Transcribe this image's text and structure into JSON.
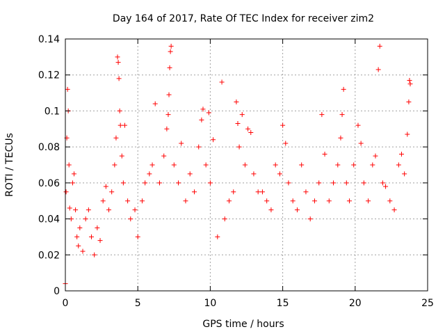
{
  "chart_data": {
    "type": "scatter",
    "title": "Day 164 of 2017, Rate Of TEC Index for receiver zim2",
    "xlabel": "GPS time / hours",
    "ylabel": "ROTI / TECUs",
    "xlim": [
      0,
      25
    ],
    "ylim": [
      0,
      0.14
    ],
    "xticks": [
      0,
      5,
      10,
      15,
      20,
      25
    ],
    "xtick_labels": [
      "0",
      "5",
      "10",
      "15",
      "20",
      "25"
    ],
    "yticks": [
      0,
      0.02,
      0.04,
      0.06,
      0.08,
      0.1,
      0.12,
      0.14
    ],
    "ytick_labels": [
      "0",
      "0.02",
      "0.04",
      "0.06",
      "0.08",
      "0.1",
      "0.12",
      "0.14"
    ],
    "grid": true,
    "marker": "plus",
    "color": "#ff0000",
    "series": [
      {
        "name": "ROTI",
        "points": [
          [
            0.0,
            0.004
          ],
          [
            0.05,
            0.055
          ],
          [
            0.1,
            0.085
          ],
          [
            0.15,
            0.112
          ],
          [
            0.2,
            0.1
          ],
          [
            0.25,
            0.07
          ],
          [
            0.3,
            0.046
          ],
          [
            0.4,
            0.04
          ],
          [
            0.5,
            0.06
          ],
          [
            0.6,
            0.065
          ],
          [
            0.7,
            0.045
          ],
          [
            0.8,
            0.03
          ],
          [
            0.9,
            0.025
          ],
          [
            1.0,
            0.035
          ],
          [
            1.2,
            0.022
          ],
          [
            1.4,
            0.04
          ],
          [
            1.6,
            0.045
          ],
          [
            1.8,
            0.03
          ],
          [
            2.0,
            0.02
          ],
          [
            2.2,
            0.035
          ],
          [
            2.4,
            0.028
          ],
          [
            2.6,
            0.05
          ],
          [
            2.8,
            0.058
          ],
          [
            3.0,
            0.045
          ],
          [
            3.2,
            0.055
          ],
          [
            3.4,
            0.07
          ],
          [
            3.5,
            0.085
          ],
          [
            3.6,
            0.13
          ],
          [
            3.65,
            0.127
          ],
          [
            3.7,
            0.118
          ],
          [
            3.75,
            0.1
          ],
          [
            3.8,
            0.092
          ],
          [
            3.9,
            0.075
          ],
          [
            4.0,
            0.06
          ],
          [
            4.1,
            0.092
          ],
          [
            4.3,
            0.05
          ],
          [
            4.5,
            0.04
          ],
          [
            4.8,
            0.045
          ],
          [
            5.0,
            0.03
          ],
          [
            5.3,
            0.05
          ],
          [
            5.5,
            0.06
          ],
          [
            5.8,
            0.065
          ],
          [
            6.0,
            0.07
          ],
          [
            6.2,
            0.104
          ],
          [
            6.5,
            0.06
          ],
          [
            6.8,
            0.075
          ],
          [
            7.0,
            0.09
          ],
          [
            7.1,
            0.098
          ],
          [
            7.15,
            0.109
          ],
          [
            7.2,
            0.124
          ],
          [
            7.25,
            0.133
          ],
          [
            7.3,
            0.136
          ],
          [
            7.5,
            0.07
          ],
          [
            7.8,
            0.06
          ],
          [
            8.0,
            0.082
          ],
          [
            8.3,
            0.05
          ],
          [
            8.6,
            0.065
          ],
          [
            8.9,
            0.055
          ],
          [
            9.2,
            0.08
          ],
          [
            9.4,
            0.095
          ],
          [
            9.5,
            0.101
          ],
          [
            9.7,
            0.07
          ],
          [
            9.9,
            0.099
          ],
          [
            10.0,
            0.06
          ],
          [
            10.2,
            0.084
          ],
          [
            10.5,
            0.03
          ],
          [
            10.8,
            0.116
          ],
          [
            11.0,
            0.04
          ],
          [
            11.3,
            0.05
          ],
          [
            11.6,
            0.055
          ],
          [
            11.8,
            0.105
          ],
          [
            11.9,
            0.093
          ],
          [
            12.0,
            0.08
          ],
          [
            12.2,
            0.098
          ],
          [
            12.4,
            0.07
          ],
          [
            12.6,
            0.09
          ],
          [
            12.8,
            0.088
          ],
          [
            13.0,
            0.065
          ],
          [
            13.3,
            0.055
          ],
          [
            13.6,
            0.055
          ],
          [
            13.9,
            0.05
          ],
          [
            14.2,
            0.045
          ],
          [
            14.5,
            0.07
          ],
          [
            14.8,
            0.065
          ],
          [
            15.0,
            0.092
          ],
          [
            15.2,
            0.082
          ],
          [
            15.4,
            0.06
          ],
          [
            15.7,
            0.05
          ],
          [
            16.0,
            0.045
          ],
          [
            16.3,
            0.07
          ],
          [
            16.6,
            0.055
          ],
          [
            16.9,
            0.04
          ],
          [
            17.2,
            0.05
          ],
          [
            17.5,
            0.06
          ],
          [
            17.7,
            0.098
          ],
          [
            17.9,
            0.076
          ],
          [
            18.2,
            0.05
          ],
          [
            18.5,
            0.06
          ],
          [
            18.8,
            0.07
          ],
          [
            19.0,
            0.085
          ],
          [
            19.1,
            0.098
          ],
          [
            19.2,
            0.112
          ],
          [
            19.4,
            0.06
          ],
          [
            19.6,
            0.05
          ],
          [
            19.9,
            0.07
          ],
          [
            20.2,
            0.092
          ],
          [
            20.4,
            0.082
          ],
          [
            20.6,
            0.06
          ],
          [
            20.9,
            0.05
          ],
          [
            21.2,
            0.07
          ],
          [
            21.4,
            0.075
          ],
          [
            21.6,
            0.123
          ],
          [
            21.7,
            0.136
          ],
          [
            21.9,
            0.06
          ],
          [
            22.1,
            0.058
          ],
          [
            22.4,
            0.05
          ],
          [
            22.7,
            0.045
          ],
          [
            23.0,
            0.07
          ],
          [
            23.2,
            0.076
          ],
          [
            23.4,
            0.065
          ],
          [
            23.6,
            0.087
          ],
          [
            23.7,
            0.105
          ],
          [
            23.75,
            0.117
          ],
          [
            23.8,
            0.115
          ]
        ]
      }
    ]
  }
}
